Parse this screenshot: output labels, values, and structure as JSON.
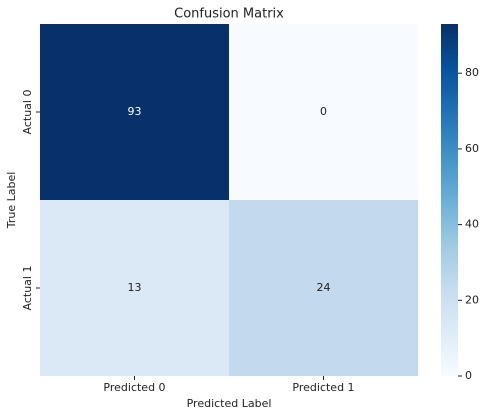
{
  "chart_data": {
    "type": "heatmap",
    "title": "Confusion Matrix",
    "x_label": "Predicted Label",
    "y_label": "True Label",
    "x_categories": [
      "Predicted 0",
      "Predicted 1"
    ],
    "y_categories": [
      "Actual 0",
      "Actual 1"
    ],
    "values": [
      [
        93,
        0
      ],
      [
        13,
        24
      ]
    ],
    "colormap": "Blues",
    "clim": [
      0,
      93
    ],
    "cticks": [
      0,
      20,
      40,
      60,
      80
    ]
  }
}
